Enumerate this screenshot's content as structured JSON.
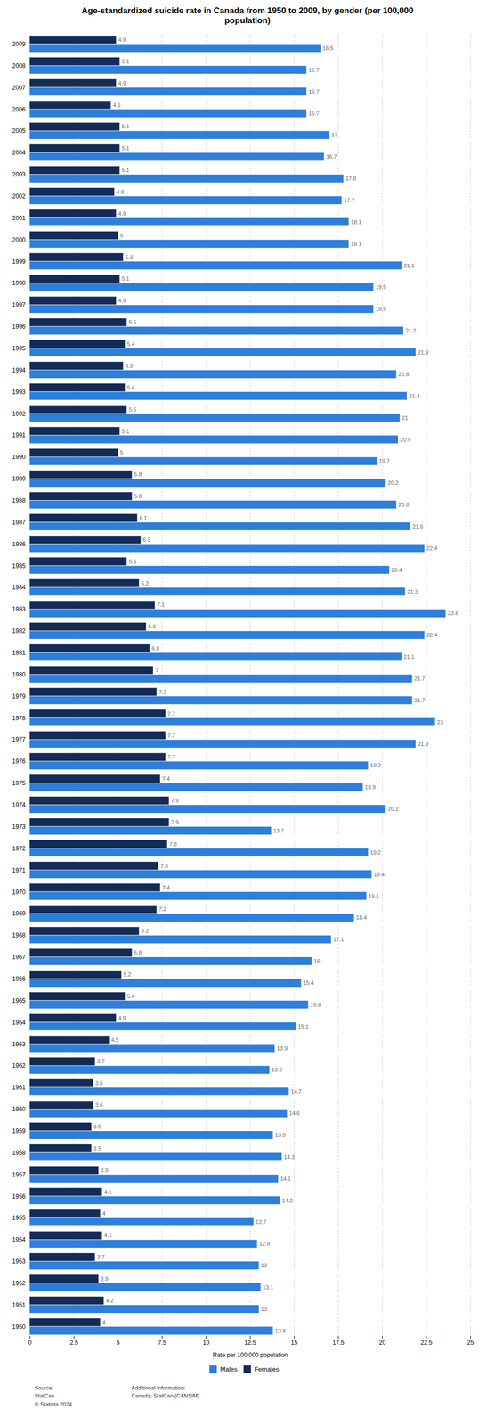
{
  "chart_data": {
    "type": "bar",
    "orientation": "horizontal",
    "title": "Age-standardized suicide rate in Canada from 1950 to 2009, by gender (per 100,000\npopulation)",
    "xlabel": "Rate per 100,000 population",
    "categories": [
      2009,
      2008,
      2007,
      2006,
      2005,
      2004,
      2003,
      2002,
      2001,
      2000,
      1999,
      1998,
      1997,
      1996,
      1995,
      1994,
      1993,
      1992,
      1991,
      1990,
      1989,
      1988,
      1987,
      1986,
      1985,
      1984,
      1983,
      1982,
      1981,
      1980,
      1979,
      1978,
      1977,
      1976,
      1975,
      1974,
      1973,
      1972,
      1971,
      1970,
      1969,
      1968,
      1967,
      1966,
      1965,
      1964,
      1963,
      1962,
      1961,
      1960,
      1959,
      1958,
      1957,
      1956,
      1955,
      1954,
      1953,
      1952,
      1951,
      1950
    ],
    "series": [
      {
        "name": "Males",
        "color": "#2e7fdb",
        "values": [
          16.5,
          15.7,
          15.7,
          15.7,
          17.0,
          16.7,
          17.8,
          17.7,
          18.1,
          18.1,
          21.1,
          19.5,
          19.5,
          21.2,
          21.9,
          20.8,
          21.4,
          21.0,
          20.9,
          19.7,
          20.2,
          20.8,
          21.6,
          22.4,
          20.4,
          21.3,
          23.6,
          22.4,
          21.1,
          21.7,
          21.7,
          23.0,
          21.9,
          19.2,
          18.9,
          20.2,
          13.7,
          19.2,
          19.4,
          19.1,
          18.4,
          17.1,
          16.0,
          15.4,
          15.8,
          15.1,
          13.9,
          13.6,
          14.7,
          14.6,
          13.8,
          14.3,
          14.1,
          14.2,
          12.7,
          12.9,
          13.0,
          13.1,
          13.0,
          13.8
        ]
      },
      {
        "name": "Females",
        "color": "#132b57",
        "values": [
          4.9,
          5.1,
          4.9,
          4.6,
          5.1,
          5.1,
          5.1,
          4.8,
          4.9,
          5.0,
          5.3,
          5.1,
          4.9,
          5.5,
          5.4,
          5.3,
          5.4,
          5.5,
          5.1,
          5.0,
          5.8,
          5.8,
          6.1,
          6.3,
          5.5,
          6.2,
          7.1,
          6.6,
          6.8,
          7.0,
          7.2,
          7.7,
          7.7,
          7.7,
          7.4,
          7.9,
          7.9,
          7.8,
          7.3,
          7.4,
          7.2,
          6.2,
          5.8,
          5.2,
          5.4,
          4.9,
          4.5,
          3.7,
          3.6,
          3.6,
          3.5,
          3.5,
          3.9,
          4.1,
          4.0,
          4.1,
          3.7,
          3.9,
          4.2,
          4.0
        ]
      }
    ],
    "xlim": [
      0,
      25
    ],
    "xticks": [
      0,
      2.5,
      5,
      7.5,
      10,
      12.5,
      15,
      17.5,
      20,
      22.5,
      25
    ],
    "grid": true,
    "legend": "bottom",
    "data_labels": true,
    "annotations": [
      "Source\nStatCan\n© Statista 2024",
      "Additional Information:\nCanada; StatCan (CANSIM)"
    ]
  }
}
